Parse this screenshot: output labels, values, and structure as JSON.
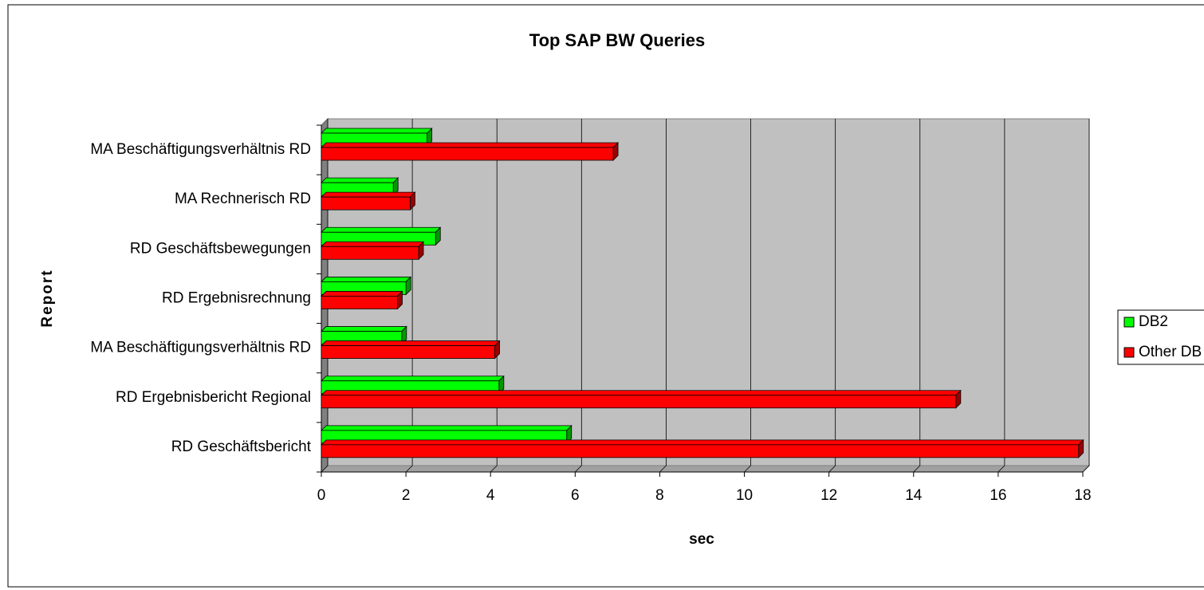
{
  "chart_data": {
    "type": "bar3d_horizontal",
    "title": "Top SAP BW Queries",
    "x_label": "sec",
    "y_label": "Report",
    "categories": [
      "MA Beschäftigungsverhältnis RD",
      "MA Rechnerisch RD",
      "RD Geschäftsbewegungen",
      "RD Ergebnisrechnung",
      "MA Beschäftigungsverhältnis RD",
      "RD Ergebnisbericht Regional",
      "RD Geschäftsbericht"
    ],
    "series": [
      {
        "name": "DB2",
        "color": "#00ff00",
        "values": [
          2.5,
          1.7,
          2.7,
          2.0,
          1.9,
          4.2,
          5.8
        ]
      },
      {
        "name": "Other DB",
        "color": "#ff0000",
        "values": [
          6.9,
          2.1,
          2.3,
          1.8,
          4.1,
          15.0,
          17.9
        ]
      }
    ],
    "xlim": [
      0,
      18
    ],
    "xticks": [
      0,
      2,
      4,
      6,
      8,
      10,
      12,
      14,
      16,
      18
    ],
    "grid": true,
    "legend": "right"
  }
}
